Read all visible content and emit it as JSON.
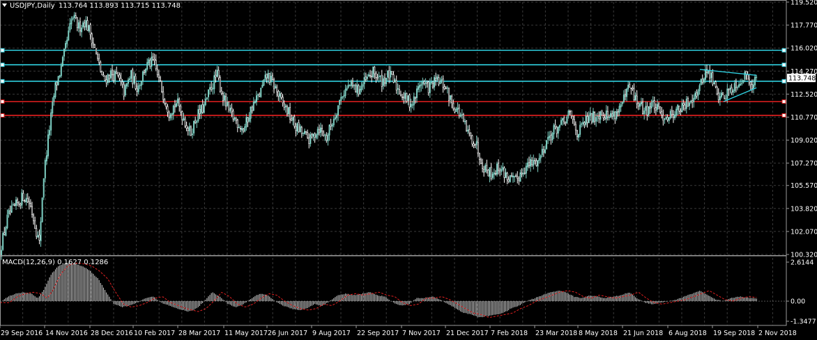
{
  "colors": {
    "background": "#000000",
    "grid": "#3a3a3a",
    "frame": "#9a9a9a",
    "text": "#ffffff",
    "candle_bull": "#7fd0c4",
    "candle_bear": "#ffffff",
    "cyan_level": "#2fd0e0",
    "red_level": "#e82020",
    "macd_hist": "#d8d8d8",
    "macd_signal": "#e02020",
    "current_price_box": "#ffffff"
  },
  "chart_data": [
    {
      "type": "candlestick",
      "title": "USDJPY,Daily",
      "ohlc_label": "113.764 113.893 113.715 113.748",
      "current_price": 113.748,
      "ylim": [
        100.32,
        119.52
      ],
      "y_ticks": [
        "119.520",
        "117.770",
        "116.020",
        "114.270",
        "112.520",
        "110.770",
        "109.020",
        "107.270",
        "105.570",
        "103.820",
        "102.070",
        "100.320"
      ],
      "x_tick_labels": [
        "29 Sep 2016",
        "14 Nov 2016",
        "28 Dec 2016",
        "10 Feb 2017",
        "28 Mar 2017",
        "11 May 2017",
        "26 Jun 2017",
        "9 Aug 2017",
        "22 Sep 2017",
        "7 Nov 2017",
        "21 Dec 2017",
        "7 Feb 2018",
        "23 Mar 2018",
        "8 May 2018",
        "21 Jun 2018",
        "6 Aug 2018",
        "19 Sep 2018",
        "2 Nov 2018"
      ],
      "horizontal_levels": [
        {
          "price": 115.85,
          "color": "cyan"
        },
        {
          "price": 114.75,
          "color": "cyan"
        },
        {
          "price": 113.5,
          "color": "cyan"
        },
        {
          "price": 111.95,
          "color": "red"
        },
        {
          "price": 110.9,
          "color": "red"
        }
      ],
      "trendlines": [
        {
          "from": [
            0.89,
            114.4
          ],
          "to": [
            0.962,
            113.95
          ]
        },
        {
          "from": [
            0.92,
            111.95
          ],
          "to": [
            0.962,
            113.0
          ]
        }
      ],
      "close_path": [
        [
          0.0,
          100.6
        ],
        [
          0.01,
          103.2
        ],
        [
          0.02,
          104.0
        ],
        [
          0.03,
          104.8
        ],
        [
          0.038,
          104.2
        ],
        [
          0.045,
          102.5
        ],
        [
          0.05,
          101.1
        ],
        [
          0.055,
          106.0
        ],
        [
          0.062,
          109.5
        ],
        [
          0.07,
          113.0
        ],
        [
          0.078,
          114.5
        ],
        [
          0.085,
          116.5
        ],
        [
          0.092,
          118.4
        ],
        [
          0.1,
          117.6
        ],
        [
          0.108,
          118.1
        ],
        [
          0.116,
          117.0
        ],
        [
          0.124,
          115.1
        ],
        [
          0.132,
          113.5
        ],
        [
          0.14,
          114.1
        ],
        [
          0.15,
          113.8
        ],
        [
          0.158,
          112.6
        ],
        [
          0.166,
          114.0
        ],
        [
          0.175,
          113.0
        ],
        [
          0.185,
          114.6
        ],
        [
          0.195,
          115.0
        ],
        [
          0.205,
          113.0
        ],
        [
          0.215,
          111.2
        ],
        [
          0.225,
          111.9
        ],
        [
          0.233,
          110.8
        ],
        [
          0.242,
          109.5
        ],
        [
          0.25,
          110.8
        ],
        [
          0.26,
          111.6
        ],
        [
          0.268,
          113.0
        ],
        [
          0.276,
          114.0
        ],
        [
          0.284,
          112.2
        ],
        [
          0.292,
          111.1
        ],
        [
          0.3,
          110.5
        ],
        [
          0.31,
          109.8
        ],
        [
          0.32,
          111.5
        ],
        [
          0.33,
          112.5
        ],
        [
          0.34,
          114.0
        ],
        [
          0.35,
          113.0
        ],
        [
          0.358,
          111.9
        ],
        [
          0.366,
          111.2
        ],
        [
          0.375,
          110.1
        ],
        [
          0.385,
          109.5
        ],
        [
          0.395,
          109.0
        ],
        [
          0.405,
          110.0
        ],
        [
          0.415,
          109.2
        ],
        [
          0.425,
          110.8
        ],
        [
          0.435,
          112.5
        ],
        [
          0.445,
          113.2
        ],
        [
          0.455,
          112.8
        ],
        [
          0.465,
          113.5
        ],
        [
          0.475,
          114.2
        ],
        [
          0.485,
          113.5
        ],
        [
          0.495,
          114.0
        ],
        [
          0.505,
          113.0
        ],
        [
          0.515,
          112.2
        ],
        [
          0.525,
          111.8
        ],
        [
          0.535,
          113.5
        ],
        [
          0.545,
          113.0
        ],
        [
          0.555,
          113.5
        ],
        [
          0.565,
          113.2
        ],
        [
          0.575,
          111.8
        ],
        [
          0.585,
          111.0
        ],
        [
          0.595,
          109.5
        ],
        [
          0.605,
          108.8
        ],
        [
          0.615,
          107.0
        ],
        [
          0.625,
          106.5
        ],
        [
          0.635,
          107.0
        ],
        [
          0.645,
          106.2
        ],
        [
          0.655,
          105.8
        ],
        [
          0.665,
          106.8
        ],
        [
          0.675,
          107.2
        ],
        [
          0.685,
          107.5
        ],
        [
          0.695,
          109.0
        ],
        [
          0.705,
          109.8
        ],
        [
          0.715,
          110.2
        ],
        [
          0.725,
          111.0
        ],
        [
          0.735,
          109.5
        ],
        [
          0.745,
          110.5
        ],
        [
          0.755,
          110.8
        ],
        [
          0.765,
          111.2
        ],
        [
          0.775,
          110.8
        ],
        [
          0.785,
          111.2
        ],
        [
          0.795,
          112.2
        ],
        [
          0.8,
          113.1
        ],
        [
          0.81,
          111.9
        ],
        [
          0.82,
          111.2
        ],
        [
          0.83,
          111.8
        ],
        [
          0.84,
          111.0
        ],
        [
          0.85,
          110.8
        ],
        [
          0.86,
          111.3
        ],
        [
          0.87,
          111.5
        ],
        [
          0.88,
          112.3
        ],
        [
          0.89,
          113.0
        ],
        [
          0.897,
          114.3
        ],
        [
          0.905,
          113.8
        ],
        [
          0.912,
          112.5
        ],
        [
          0.92,
          112.3
        ],
        [
          0.93,
          113.0
        ],
        [
          0.94,
          113.5
        ],
        [
          0.95,
          114.0
        ],
        [
          0.958,
          113.2
        ],
        [
          0.962,
          113.75
        ]
      ]
    },
    {
      "type": "macd",
      "label": "MACD(12,26,9) 0.1627 0.1286",
      "ylim": [
        -1.3477,
        2.6144
      ],
      "y_ticks": [
        "2.6144",
        "0.00",
        "-1.3477"
      ],
      "hist_path": [
        [
          0.0,
          -0.1
        ],
        [
          0.01,
          0.3
        ],
        [
          0.02,
          0.5
        ],
        [
          0.03,
          0.6
        ],
        [
          0.04,
          0.5
        ],
        [
          0.048,
          0.2
        ],
        [
          0.055,
          0.7
        ],
        [
          0.065,
          1.8
        ],
        [
          0.075,
          2.4
        ],
        [
          0.085,
          2.55
        ],
        [
          0.095,
          2.5
        ],
        [
          0.105,
          2.35
        ],
        [
          0.115,
          2.0
        ],
        [
          0.125,
          1.5
        ],
        [
          0.135,
          0.6
        ],
        [
          0.145,
          -0.2
        ],
        [
          0.155,
          -0.4
        ],
        [
          0.165,
          -0.3
        ],
        [
          0.175,
          -0.1
        ],
        [
          0.185,
          0.2
        ],
        [
          0.195,
          0.3
        ],
        [
          0.205,
          -0.1
        ],
        [
          0.215,
          -0.3
        ],
        [
          0.225,
          -0.5
        ],
        [
          0.24,
          -0.7
        ],
        [
          0.25,
          -0.5
        ],
        [
          0.26,
          0.0
        ],
        [
          0.27,
          0.6
        ],
        [
          0.28,
          0.3
        ],
        [
          0.29,
          -0.2
        ],
        [
          0.3,
          -0.4
        ],
        [
          0.31,
          -0.2
        ],
        [
          0.32,
          0.2
        ],
        [
          0.33,
          0.5
        ],
        [
          0.34,
          0.4
        ],
        [
          0.35,
          0.0
        ],
        [
          0.36,
          -0.3
        ],
        [
          0.37,
          -0.5
        ],
        [
          0.38,
          -0.6
        ],
        [
          0.39,
          -0.5
        ],
        [
          0.4,
          -0.2
        ],
        [
          0.41,
          -0.3
        ],
        [
          0.42,
          0.0
        ],
        [
          0.43,
          0.4
        ],
        [
          0.44,
          0.5
        ],
        [
          0.45,
          0.4
        ],
        [
          0.46,
          0.5
        ],
        [
          0.47,
          0.6
        ],
        [
          0.48,
          0.4
        ],
        [
          0.49,
          0.3
        ],
        [
          0.5,
          -0.1
        ],
        [
          0.51,
          -0.3
        ],
        [
          0.52,
          -0.2
        ],
        [
          0.53,
          0.2
        ],
        [
          0.54,
          0.2
        ],
        [
          0.55,
          0.3
        ],
        [
          0.56,
          0.1
        ],
        [
          0.57,
          -0.2
        ],
        [
          0.58,
          -0.5
        ],
        [
          0.59,
          -0.8
        ],
        [
          0.6,
          -0.9
        ],
        [
          0.61,
          -1.1
        ],
        [
          0.62,
          -1.0
        ],
        [
          0.63,
          -0.9
        ],
        [
          0.64,
          -0.8
        ],
        [
          0.65,
          -0.5
        ],
        [
          0.66,
          -0.3
        ],
        [
          0.67,
          0.0
        ],
        [
          0.68,
          0.2
        ],
        [
          0.69,
          0.4
        ],
        [
          0.7,
          0.6
        ],
        [
          0.71,
          0.7
        ],
        [
          0.72,
          0.6
        ],
        [
          0.73,
          0.3
        ],
        [
          0.74,
          0.2
        ],
        [
          0.75,
          0.4
        ],
        [
          0.76,
          0.3
        ],
        [
          0.77,
          0.2
        ],
        [
          0.78,
          0.3
        ],
        [
          0.79,
          0.4
        ],
        [
          0.8,
          0.6
        ],
        [
          0.81,
          0.2
        ],
        [
          0.82,
          -0.1
        ],
        [
          0.83,
          -0.2
        ],
        [
          0.84,
          -0.1
        ],
        [
          0.85,
          0.0
        ],
        [
          0.86,
          0.1
        ],
        [
          0.87,
          0.3
        ],
        [
          0.88,
          0.5
        ],
        [
          0.89,
          0.7
        ],
        [
          0.9,
          0.4
        ],
        [
          0.91,
          0.1
        ],
        [
          0.92,
          0.0
        ],
        [
          0.93,
          0.2
        ],
        [
          0.94,
          0.3
        ],
        [
          0.95,
          0.25
        ],
        [
          0.962,
          0.16
        ]
      ]
    }
  ]
}
